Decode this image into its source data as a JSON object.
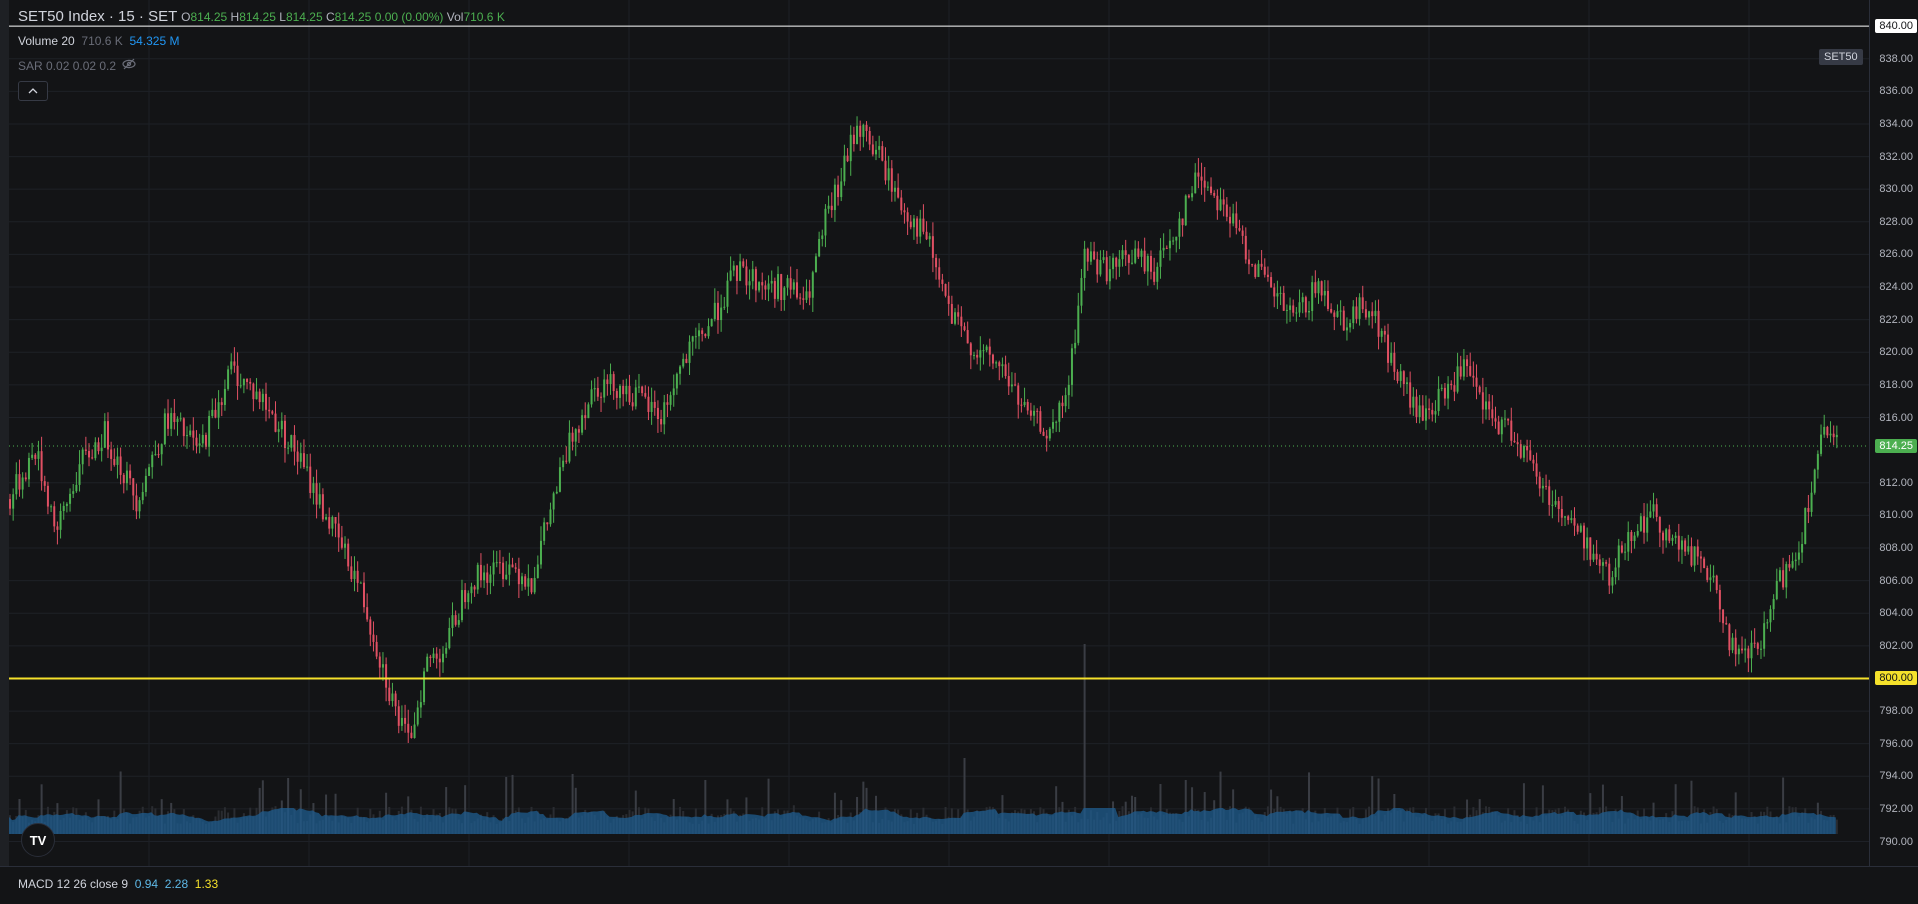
{
  "header": {
    "symbol": "SET50 Index · 15 · SET",
    "o_label": "O",
    "o_value": "814.25",
    "h_label": "H",
    "h_value": "814.25",
    "l_label": "L",
    "l_value": "814.25",
    "c_label": "C",
    "c_value": "814.25",
    "change": "0.00 (0.00%)",
    "vol_label": "Vol",
    "vol_value": "710.6 K"
  },
  "indicators": {
    "volume_name": "Volume 20",
    "volume_value": "710.6 K",
    "volume_ma": "54.325 M",
    "sar_name": "SAR 0.02 0.02 0.2",
    "collapse_icon": "chevron-up-icon",
    "hide_icon": "eye-off-icon"
  },
  "symbol_badge": "SET50",
  "price_tags": {
    "top_line": "840.00",
    "current": "814.25",
    "support": "800.00"
  },
  "colors": {
    "up": "#4caf50",
    "down": "#e05063",
    "volume_area": "#1f5c8f",
    "support_line": "#f5e12b",
    "top_line": "#ffffff",
    "current_tag": "#4caf50"
  },
  "macd": {
    "name": "MACD 12 26 close 9",
    "macd": "0.94",
    "signal": "2.28",
    "hist": "1.33"
  },
  "logo_text": "TV",
  "chart_data": {
    "type": "candlestick",
    "y_ticks": [
      "838.00",
      "836.00",
      "834.00",
      "832.00",
      "830.00",
      "828.00",
      "826.00",
      "824.00",
      "822.00",
      "820.00",
      "818.00",
      "816.00",
      "812.00",
      "810.00",
      "808.00",
      "806.00",
      "804.00",
      "802.00",
      "798.00",
      "796.00",
      "794.00",
      "792.00",
      "790.00"
    ],
    "ylim": [
      788.5,
      841.6
    ],
    "horizontal_lines": [
      840.0,
      800.0
    ],
    "current_price": 814.25,
    "anchors": [
      [
        0,
        811
      ],
      [
        8,
        814
      ],
      [
        15,
        809
      ],
      [
        22,
        813
      ],
      [
        30,
        815
      ],
      [
        40,
        811
      ],
      [
        50,
        816
      ],
      [
        60,
        814
      ],
      [
        70,
        819
      ],
      [
        80,
        817
      ],
      [
        90,
        814
      ],
      [
        100,
        810
      ],
      [
        110,
        806
      ],
      [
        122,
        798
      ],
      [
        126,
        796
      ],
      [
        132,
        801
      ],
      [
        138,
        802
      ],
      [
        145,
        806
      ],
      [
        158,
        807
      ],
      [
        165,
        806
      ],
      [
        172,
        811
      ],
      [
        178,
        815
      ],
      [
        185,
        818
      ],
      [
        192,
        818
      ],
      [
        200,
        817
      ],
      [
        206,
        816
      ],
      [
        212,
        819
      ],
      [
        222,
        822
      ],
      [
        230,
        825
      ],
      [
        240,
        824
      ],
      [
        246,
        824
      ],
      [
        252,
        823
      ],
      [
        258,
        828
      ],
      [
        262,
        830
      ],
      [
        268,
        834
      ],
      [
        275,
        832
      ],
      [
        282,
        829
      ],
      [
        290,
        827
      ],
      [
        298,
        822
      ],
      [
        306,
        820
      ],
      [
        314,
        819
      ],
      [
        322,
        816
      ],
      [
        330,
        815
      ],
      [
        335,
        818
      ],
      [
        340,
        826
      ],
      [
        348,
        825
      ],
      [
        355,
        826
      ],
      [
        362,
        825
      ],
      [
        370,
        828
      ],
      [
        376,
        831
      ],
      [
        384,
        829
      ],
      [
        392,
        826
      ],
      [
        398,
        824
      ],
      [
        406,
        822
      ],
      [
        414,
        824
      ],
      [
        422,
        822
      ],
      [
        430,
        823
      ],
      [
        438,
        819
      ],
      [
        446,
        816
      ],
      [
        452,
        817
      ],
      [
        460,
        819
      ],
      [
        468,
        816
      ],
      [
        476,
        815
      ],
      [
        484,
        812
      ],
      [
        492,
        810
      ],
      [
        500,
        808
      ],
      [
        506,
        806
      ],
      [
        512,
        809
      ],
      [
        520,
        810
      ],
      [
        528,
        808
      ],
      [
        536,
        807
      ],
      [
        542,
        804
      ],
      [
        546,
        801
      ],
      [
        554,
        802
      ],
      [
        560,
        806
      ],
      [
        566,
        808
      ],
      [
        570,
        812
      ],
      [
        574,
        815
      ],
      [
        578,
        814.25
      ]
    ],
    "volume_peaks": [
      [
        340,
        0.95
      ],
      [
        302,
        0.38
      ],
      [
        178,
        0.3
      ],
      [
        220,
        0.27
      ],
      [
        88,
        0.28
      ],
      [
        364,
        0.25
      ],
      [
        438,
        0.2
      ]
    ]
  }
}
